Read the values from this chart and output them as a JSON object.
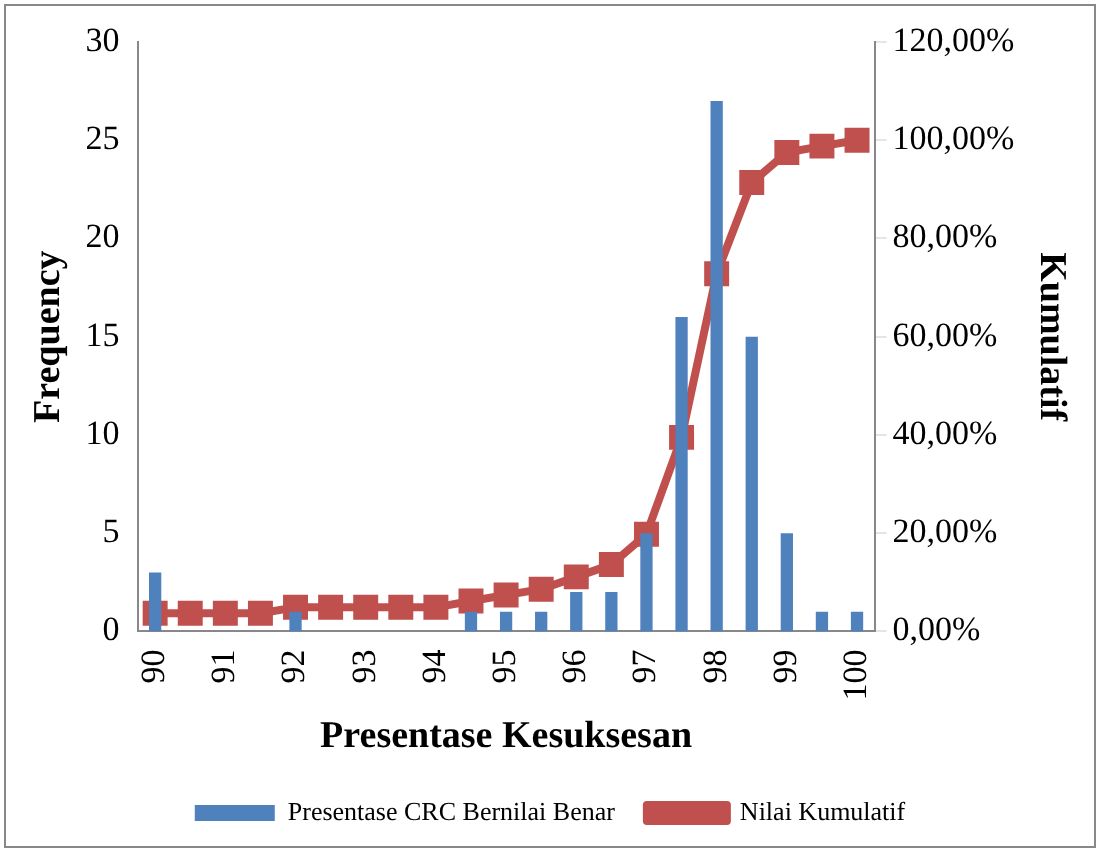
{
  "chart_data": {
    "type": "bar",
    "xlabel": "Presentase Kesuksesan",
    "ylabel": "Frequency",
    "y2label": "Kumulatif",
    "categories": [
      "90",
      null,
      "91",
      null,
      "92",
      null,
      "93",
      null,
      "94",
      null,
      "95",
      null,
      "96",
      null,
      "97",
      null,
      "98",
      null,
      "99",
      null,
      "100"
    ],
    "series": [
      {
        "name": "Presentase CRC Bernilai Benar",
        "color": "#4f81bd",
        "values": [
          3,
          0,
          0,
          0,
          1,
          0,
          0,
          0,
          0,
          1,
          1,
          1,
          2,
          2,
          5,
          16,
          27,
          15,
          5,
          1,
          1
        ]
      },
      {
        "name": "Nilai Kumulatif",
        "type": "line",
        "axis": "y2",
        "color": "#c0504d",
        "marker": "square",
        "values": [
          3.7,
          3.7,
          3.7,
          3.7,
          4.9,
          4.9,
          4.9,
          4.9,
          4.9,
          6.2,
          7.4,
          8.6,
          11.1,
          13.6,
          19.8,
          39.5,
          72.8,
          91.4,
          97.5,
          98.8,
          100
        ]
      }
    ],
    "ylim": [
      0,
      30
    ],
    "yticks": [
      0,
      5,
      10,
      15,
      20,
      25,
      30
    ],
    "y2lim": [
      0,
      120
    ],
    "y2ticks": [
      {
        "value": 0,
        "label": "0,00%"
      },
      {
        "value": 20,
        "label": "20,00%"
      },
      {
        "value": 40,
        "label": "40,00%"
      },
      {
        "value": 60,
        "label": "60,00%"
      },
      {
        "value": 80,
        "label": "80,00%"
      },
      {
        "value": 100,
        "label": "100,00%"
      },
      {
        "value": 120,
        "label": "120,00%"
      }
    ],
    "grid": false,
    "legend": "bottom"
  }
}
